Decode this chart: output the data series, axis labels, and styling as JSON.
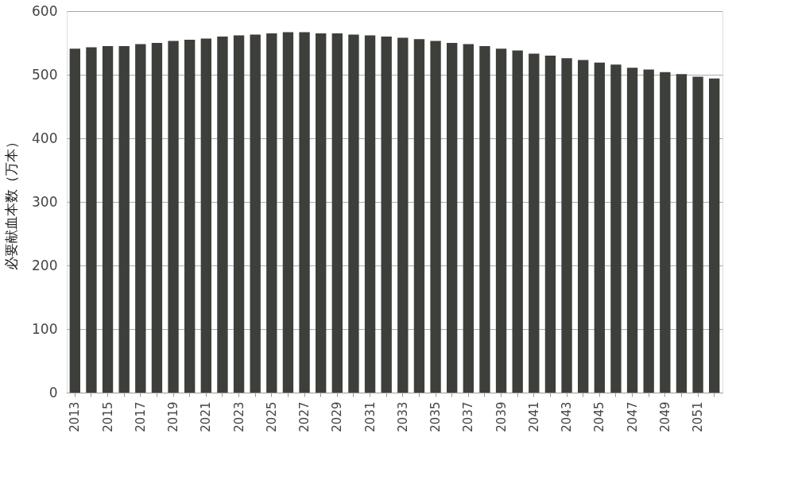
{
  "chart_data": {
    "type": "bar",
    "ylabel": "必要献血本数（万本）",
    "categories": [
      "2013",
      null,
      "2015",
      null,
      "2017",
      null,
      "2019",
      null,
      "2021",
      null,
      "2023",
      null,
      "2025",
      null,
      "2027",
      null,
      "2029",
      null,
      "2031",
      null,
      "2033",
      null,
      "2035",
      null,
      "2037",
      null,
      "2039",
      null,
      "2041",
      null,
      "2043",
      null,
      "2045",
      null,
      "2047",
      null,
      "2049",
      null,
      "2051",
      null
    ],
    "values": [
      541,
      543,
      545,
      545,
      548,
      550,
      553,
      555,
      557,
      560,
      562,
      563,
      565,
      567,
      567,
      565,
      565,
      563,
      562,
      560,
      558,
      556,
      553,
      550,
      548,
      545,
      541,
      538,
      533,
      530,
      526,
      523,
      519,
      516,
      511,
      508,
      504,
      501,
      497,
      494
    ],
    "color": "#3d403a",
    "ylim": [
      0,
      600
    ],
    "yticks": [
      0,
      100,
      200,
      300,
      400,
      500,
      600
    ],
    "grid": "y"
  }
}
